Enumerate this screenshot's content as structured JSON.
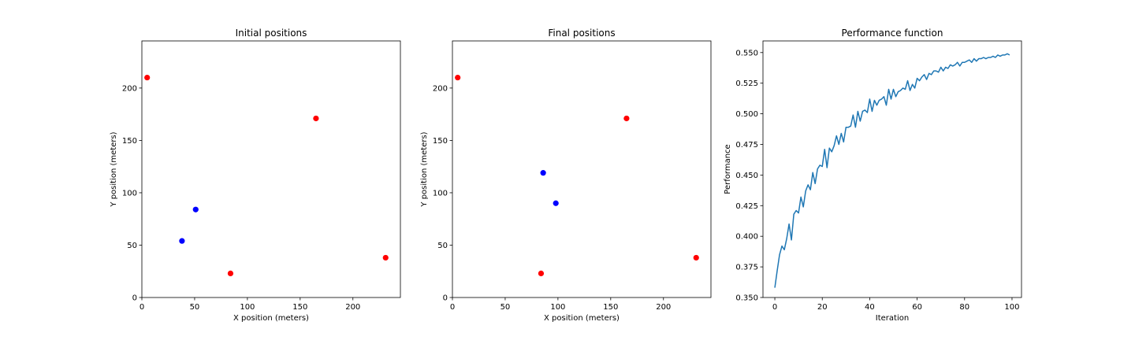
{
  "colors": {
    "red": "#ff0000",
    "blue": "#0000ff",
    "line": "#1f77b4",
    "axes": "#000000",
    "background": "#ffffff"
  },
  "chart_data": [
    {
      "type": "scatter",
      "title": "Initial positions",
      "xlabel": "X position (meters)",
      "ylabel": "Y position (meters)",
      "xlim": [
        0,
        245
      ],
      "ylim": [
        0,
        245
      ],
      "xticks": [
        0,
        50,
        100,
        150,
        200
      ],
      "yticks": [
        0,
        50,
        100,
        150,
        200
      ],
      "grid": false,
      "series": [
        {
          "color": "#ff0000",
          "points": [
            [
              5,
              210
            ],
            [
              165,
              171
            ],
            [
              84,
              23
            ],
            [
              231,
              38
            ]
          ]
        },
        {
          "color": "#0000ff",
          "points": [
            [
              51,
              84
            ],
            [
              38,
              54
            ]
          ]
        }
      ]
    },
    {
      "type": "scatter",
      "title": "Final positions",
      "xlabel": "X position (meters)",
      "ylabel": "Y position (meters)",
      "xlim": [
        0,
        245
      ],
      "ylim": [
        0,
        245
      ],
      "xticks": [
        0,
        50,
        100,
        150,
        200
      ],
      "yticks": [
        0,
        50,
        100,
        150,
        200
      ],
      "grid": false,
      "series": [
        {
          "color": "#ff0000",
          "points": [
            [
              5,
              210
            ],
            [
              165,
              171
            ],
            [
              84,
              23
            ],
            [
              231,
              38
            ]
          ]
        },
        {
          "color": "#0000ff",
          "points": [
            [
              86,
              119
            ],
            [
              98,
              90
            ]
          ]
        }
      ]
    },
    {
      "type": "line",
      "title": "Performance function",
      "xlabel": "Iteration",
      "ylabel": "Performance",
      "xlim": [
        -5,
        104
      ],
      "ylim": [
        0.35,
        0.5595
      ],
      "xticks": [
        0,
        20,
        40,
        60,
        80,
        100
      ],
      "yticks": [
        0.35,
        0.375,
        0.4,
        0.425,
        0.45,
        0.475,
        0.5,
        0.525,
        0.55
      ],
      "ytick_labels": [
        "0.350",
        "0.375",
        "0.400",
        "0.425",
        "0.450",
        "0.475",
        "0.500",
        "0.525",
        "0.550"
      ],
      "grid": false,
      "series": [
        {
          "color": "#1f77b4",
          "x": [
            0,
            1,
            2,
            3,
            4,
            5,
            6,
            7,
            8,
            9,
            10,
            11,
            12,
            13,
            14,
            15,
            16,
            17,
            18,
            19,
            20,
            21,
            22,
            23,
            24,
            25,
            26,
            27,
            28,
            29,
            30,
            31,
            32,
            33,
            34,
            35,
            36,
            37,
            38,
            39,
            40,
            41,
            42,
            43,
            44,
            45,
            46,
            47,
            48,
            49,
            50,
            51,
            52,
            53,
            54,
            55,
            56,
            57,
            58,
            59,
            60,
            61,
            62,
            63,
            64,
            65,
            66,
            67,
            68,
            69,
            70,
            71,
            72,
            73,
            74,
            75,
            76,
            77,
            78,
            79,
            80,
            81,
            82,
            83,
            84,
            85,
            86,
            87,
            88,
            89,
            90,
            91,
            92,
            93,
            94,
            95,
            96,
            97,
            98,
            99
          ],
          "y": [
            0.358,
            0.372,
            0.385,
            0.392,
            0.389,
            0.398,
            0.41,
            0.397,
            0.418,
            0.421,
            0.419,
            0.432,
            0.424,
            0.437,
            0.442,
            0.438,
            0.452,
            0.443,
            0.455,
            0.458,
            0.457,
            0.471,
            0.456,
            0.472,
            0.469,
            0.474,
            0.482,
            0.475,
            0.484,
            0.477,
            0.489,
            0.489,
            0.49,
            0.499,
            0.489,
            0.502,
            0.494,
            0.502,
            0.503,
            0.501,
            0.512,
            0.502,
            0.511,
            0.507,
            0.511,
            0.512,
            0.514,
            0.507,
            0.52,
            0.512,
            0.52,
            0.514,
            0.518,
            0.519,
            0.521,
            0.52,
            0.527,
            0.519,
            0.524,
            0.521,
            0.529,
            0.527,
            0.53,
            0.532,
            0.528,
            0.533,
            0.532,
            0.535,
            0.535,
            0.534,
            0.538,
            0.535,
            0.538,
            0.537,
            0.54,
            0.539,
            0.54,
            0.542,
            0.539,
            0.542,
            0.542,
            0.543,
            0.544,
            0.542,
            0.545,
            0.543,
            0.545,
            0.545,
            0.546,
            0.545,
            0.546,
            0.546,
            0.547,
            0.546,
            0.548,
            0.547,
            0.548,
            0.548,
            0.549,
            0.548
          ]
        }
      ]
    }
  ]
}
